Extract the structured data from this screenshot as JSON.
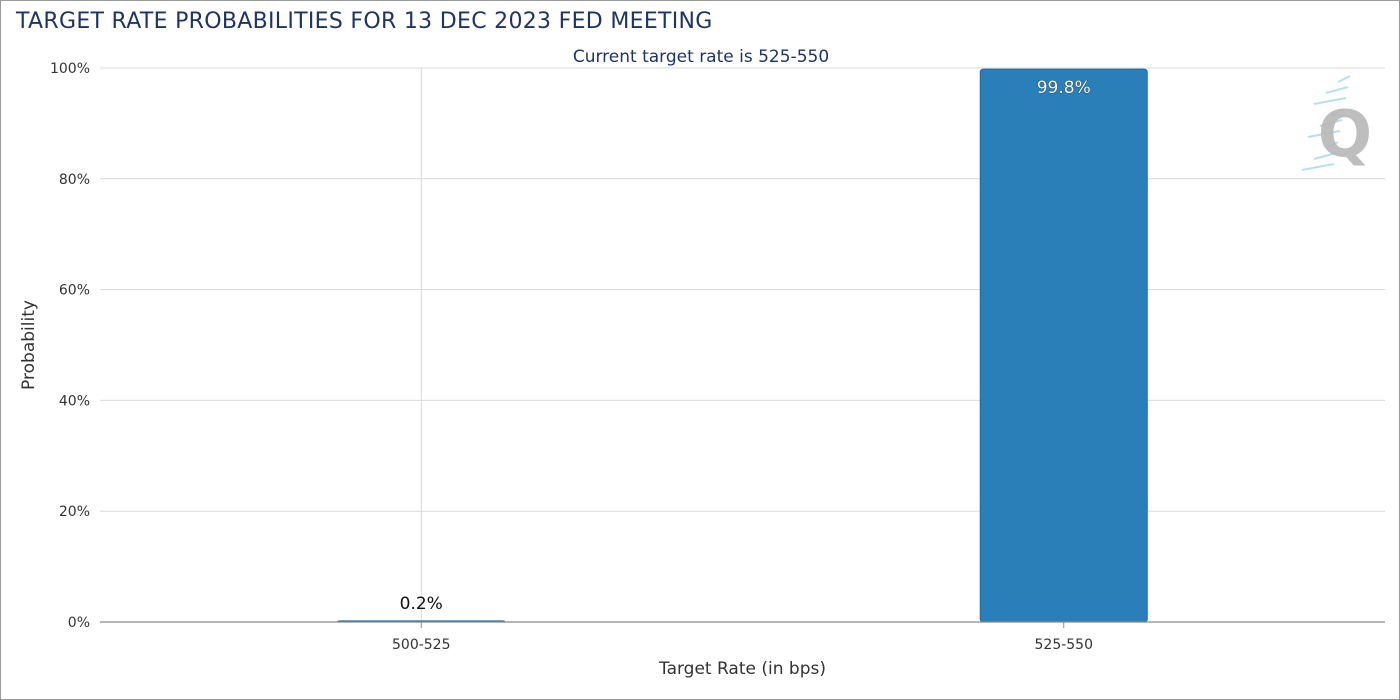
{
  "title": "TARGET RATE PROBABILITIES FOR 13 DEC 2023 FED MEETING",
  "subtitle": "Current target rate is 525-550",
  "watermark": {
    "glyph": "Q",
    "icon": "q-logo-icon",
    "color": "#b8b8b8",
    "accent": "#7fc6e0"
  },
  "colors": {
    "bar": "#2b7fb8",
    "bar_edge": "#1f6a9e",
    "title": "#1f3466",
    "grid": "#d9d9d9",
    "axis": "#8a8a8a"
  },
  "chart_data": {
    "type": "bar",
    "title": "TARGET RATE PROBABILITIES FOR 13 DEC 2023 FED MEETING",
    "subtitle": "Current target rate is 525-550",
    "xlabel": "Target Rate (in bps)",
    "ylabel": "Probability",
    "categories": [
      "500-525",
      "525-550"
    ],
    "values": [
      0.2,
      99.8
    ],
    "data_labels": [
      "0.2%",
      "99.8%"
    ],
    "ylim": [
      0,
      100
    ],
    "yticks": [
      0,
      20,
      40,
      60,
      80,
      100
    ],
    "ytick_labels": [
      "0%",
      "20%",
      "40%",
      "60%",
      "80%",
      "100%"
    ],
    "grid": true,
    "legend": "none"
  }
}
